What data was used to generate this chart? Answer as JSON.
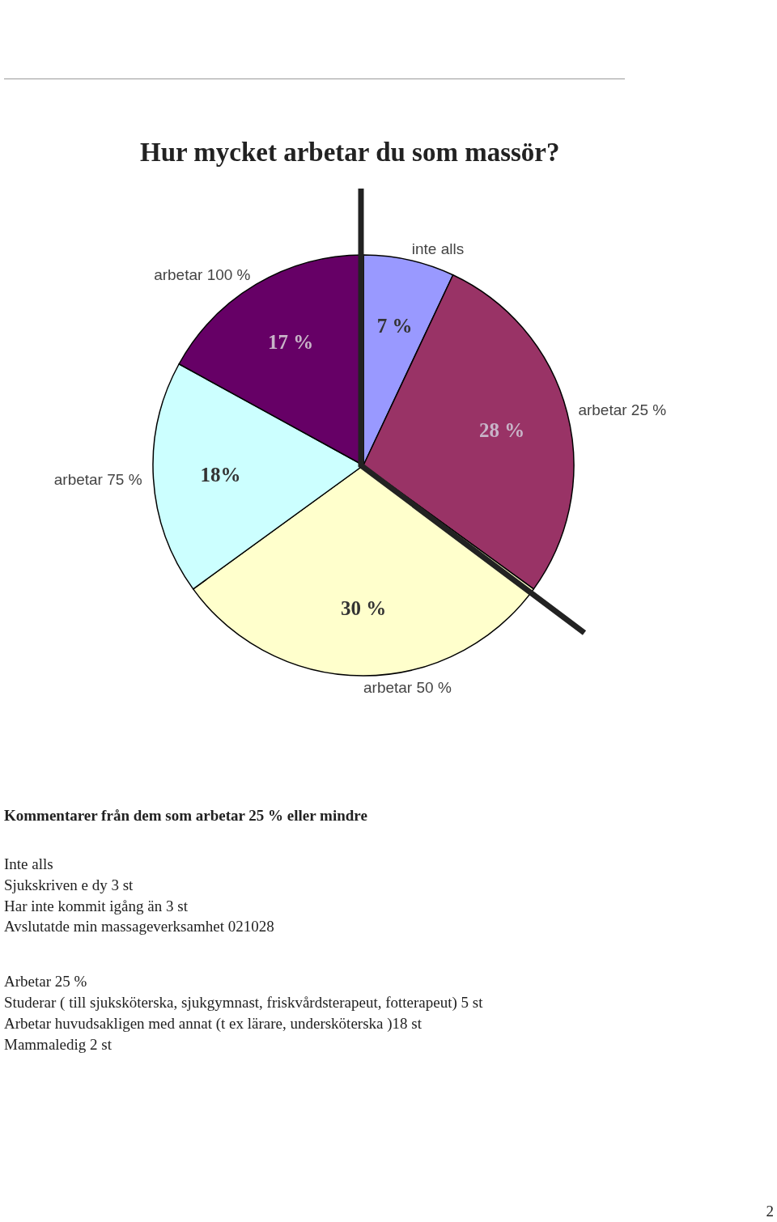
{
  "chart_data": {
    "type": "pie",
    "title": "Hur mycket arbetar du som massör?",
    "categories": [
      "inte alls",
      "arbetar 25 %",
      "arbetar 50 %",
      "arbetar 75 %",
      "arbetar 100 %"
    ],
    "values": [
      7,
      28,
      30,
      18,
      17
    ],
    "value_labels": [
      "7 %",
      "28 %",
      "30 %",
      "18%",
      "17 %"
    ],
    "colors": [
      "#9999ff",
      "#993366",
      "#ffffcc",
      "#ccffff",
      "#660066"
    ],
    "legend": false,
    "annotations": [
      "Kommentarer från dem som arbetar 25 % eller mindre",
      "Inte alls",
      "Sjukskriven e dy 3 st",
      "Har inte kommit igång än 3 st",
      "Avslutatde min massageverksamhet 021028",
      "Arbetar 25 %",
      "Studerar ( till sjuksköterska, sjukgymnast, friskvårdsterapeut, fotterapeut) 5 st",
      "Arbetar huvudsakligen med annat (t ex lärare, undersköterska )18 st",
      "Mammaledig 2 st",
      "2"
    ]
  }
}
